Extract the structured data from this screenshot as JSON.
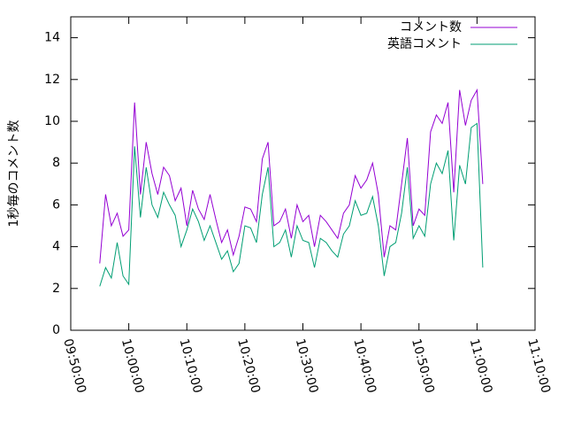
{
  "chart_data": {
    "type": "line",
    "y_label": "1秒毎のコメント数",
    "x": [
      "09:55:00",
      "09:56:00",
      "09:57:00",
      "09:58:00",
      "09:59:00",
      "10:00:00",
      "10:01:00",
      "10:02:00",
      "10:03:00",
      "10:04:00",
      "10:05:00",
      "10:06:00",
      "10:07:00",
      "10:08:00",
      "10:09:00",
      "10:10:00",
      "10:11:00",
      "10:12:00",
      "10:13:00",
      "10:14:00",
      "10:15:00",
      "10:16:00",
      "10:17:00",
      "10:18:00",
      "10:19:00",
      "10:20:00",
      "10:21:00",
      "10:22:00",
      "10:23:00",
      "10:24:00",
      "10:25:00",
      "10:26:00",
      "10:27:00",
      "10:28:00",
      "10:29:00",
      "10:30:00",
      "10:31:00",
      "10:32:00",
      "10:33:00",
      "10:34:00",
      "10:35:00",
      "10:36:00",
      "10:37:00",
      "10:38:00",
      "10:39:00",
      "10:40:00",
      "10:41:00",
      "10:42:00",
      "10:43:00",
      "10:44:00",
      "10:45:00",
      "10:46:00",
      "10:47:00",
      "10:48:00",
      "10:49:00",
      "10:50:00",
      "10:51:00",
      "10:52:00",
      "10:53:00",
      "10:54:00",
      "10:55:00",
      "10:56:00",
      "10:57:00",
      "10:58:00",
      "10:59:00",
      "11:00:00",
      "11:01:00"
    ],
    "series": [
      {
        "name": "コメント数",
        "color": "#9400d3",
        "values": [
          3.2,
          6.5,
          5.0,
          5.6,
          4.5,
          4.8,
          10.9,
          6.5,
          9.0,
          7.5,
          6.5,
          7.8,
          7.4,
          6.2,
          6.8,
          5.0,
          6.7,
          5.8,
          5.3,
          6.5,
          5.3,
          4.2,
          4.8,
          3.6,
          4.5,
          5.9,
          5.8,
          5.2,
          8.2,
          9.0,
          5.0,
          5.2,
          5.8,
          4.4,
          6.0,
          5.2,
          5.5,
          4.0,
          5.5,
          5.2,
          4.8,
          4.4,
          5.6,
          6.0,
          7.4,
          6.8,
          7.2,
          8.0,
          6.5,
          3.5,
          5.0,
          4.8,
          7.0,
          9.2,
          5.0,
          5.8,
          5.5,
          9.5,
          10.3,
          9.9,
          10.9,
          6.6,
          11.5,
          9.8,
          11.0,
          11.5,
          7.0
        ]
      },
      {
        "name": "英語コメント",
        "color": "#009e73",
        "values": [
          2.1,
          3.0,
          2.5,
          4.2,
          2.6,
          2.2,
          8.8,
          5.4,
          7.8,
          6.0,
          5.4,
          6.6,
          6.0,
          5.5,
          4.0,
          4.8,
          5.8,
          5.2,
          4.3,
          5.0,
          4.2,
          3.4,
          3.8,
          2.8,
          3.2,
          5.0,
          4.9,
          4.2,
          6.5,
          7.8,
          4.0,
          4.2,
          4.8,
          3.5,
          5.0,
          4.3,
          4.2,
          3.0,
          4.4,
          4.2,
          3.8,
          3.5,
          4.6,
          5.0,
          6.2,
          5.5,
          5.6,
          6.4,
          5.0,
          2.6,
          4.0,
          4.2,
          5.6,
          7.8,
          4.4,
          5.0,
          4.5,
          7.0,
          8.0,
          7.5,
          8.6,
          4.3,
          7.9,
          7.0,
          9.7,
          9.9,
          3.0
        ]
      }
    ],
    "xlim": [
      "09:50:00",
      "11:10:00"
    ],
    "xticks": [
      "09:50:00",
      "10:00:00",
      "10:10:00",
      "10:20:00",
      "10:30:00",
      "10:40:00",
      "10:50:00",
      "11:00:00",
      "11:10:00"
    ],
    "ylim": [
      0,
      15
    ],
    "yticks": [
      0,
      2,
      4,
      6,
      8,
      10,
      12,
      14
    ],
    "legend": "top-right"
  }
}
